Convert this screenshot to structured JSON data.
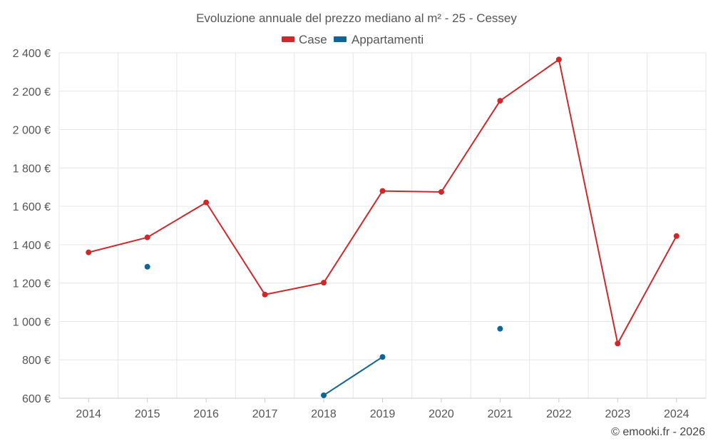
{
  "chart_data": {
    "type": "line",
    "title": "Evoluzione annuale del prezzo mediano al m² - 25 - Cessey",
    "categories": [
      "2014",
      "2015",
      "2016",
      "2017",
      "2018",
      "2019",
      "2020",
      "2021",
      "2022",
      "2023",
      "2024"
    ],
    "y_ticks": [
      "600 €",
      "800 €",
      "1 000 €",
      "1 200 €",
      "1 400 €",
      "1 600 €",
      "1 800 €",
      "2 000 €",
      "2 200 €",
      "2 400 €"
    ],
    "ylim": [
      600,
      2400
    ],
    "grid": true,
    "legend_position": "top",
    "series": [
      {
        "name": "Case",
        "color": "#d0282a",
        "values": [
          1360,
          1438,
          1620,
          1140,
          1202,
          1680,
          1675,
          2150,
          2365,
          885,
          1445
        ]
      },
      {
        "name": "Appartamenti",
        "color": "#0e6598",
        "values": [
          null,
          1285,
          null,
          null,
          615,
          815,
          null,
          962,
          null,
          null,
          null
        ]
      }
    ]
  },
  "credit": "© emooki.fr - 2026"
}
